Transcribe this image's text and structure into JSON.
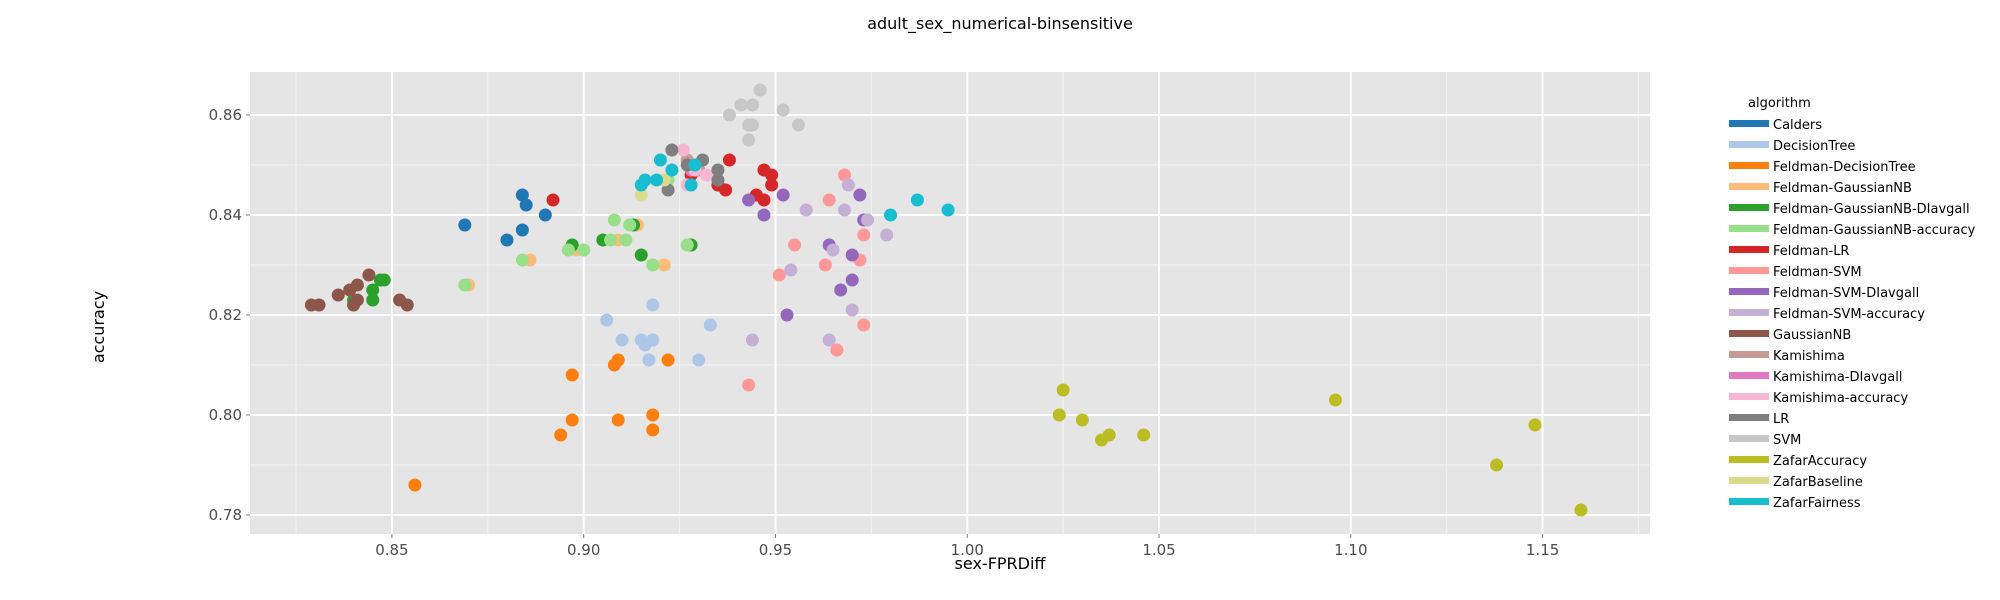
{
  "chart_data": {
    "type": "scatter",
    "title": "adult_sex_numerical-binsensitive",
    "xlabel": "sex-FPRDiff",
    "ylabel": "accuracy",
    "xlim": [
      0.813,
      1.178
    ],
    "ylim": [
      0.7762,
      0.8686
    ],
    "xticks": [
      0.85,
      0.9,
      0.95,
      1.0,
      1.05,
      1.1,
      1.15
    ],
    "xtick_labels": [
      "0.85",
      "0.90",
      "0.95",
      "1.00",
      "1.05",
      "1.10",
      "1.15"
    ],
    "yticks": [
      0.78,
      0.8,
      0.82,
      0.84,
      0.86
    ],
    "ytick_labels": [
      "0.78",
      "0.80",
      "0.82",
      "0.84",
      "0.86"
    ],
    "grid": true,
    "background": "#e5e5e5",
    "legend_title": "algorithm",
    "legend_position": "right",
    "series": [
      {
        "name": "Calders",
        "color": "#1f77b4",
        "points": [
          [
            0.869,
            0.838
          ],
          [
            0.88,
            0.835
          ],
          [
            0.884,
            0.844
          ],
          [
            0.885,
            0.842
          ],
          [
            0.884,
            0.837
          ],
          [
            0.89,
            0.84
          ]
        ]
      },
      {
        "name": "DecisionTree",
        "color": "#aec7e8",
        "points": [
          [
            0.906,
            0.819
          ],
          [
            0.91,
            0.815
          ],
          [
            0.915,
            0.815
          ],
          [
            0.916,
            0.814
          ],
          [
            0.918,
            0.815
          ],
          [
            0.917,
            0.811
          ],
          [
            0.918,
            0.822
          ],
          [
            0.93,
            0.811
          ],
          [
            0.933,
            0.818
          ]
        ]
      },
      {
        "name": "Feldman-DecisionTree",
        "color": "#ff7f0e",
        "points": [
          [
            0.856,
            0.786
          ],
          [
            0.894,
            0.796
          ],
          [
            0.897,
            0.799
          ],
          [
            0.897,
            0.808
          ],
          [
            0.908,
            0.81
          ],
          [
            0.909,
            0.811
          ],
          [
            0.909,
            0.799
          ],
          [
            0.918,
            0.8
          ],
          [
            0.918,
            0.797
          ],
          [
            0.922,
            0.811
          ]
        ]
      },
      {
        "name": "Feldman-GaussianNB",
        "color": "#ffbb78",
        "points": [
          [
            0.87,
            0.826
          ],
          [
            0.886,
            0.831
          ],
          [
            0.898,
            0.833
          ],
          [
            0.909,
            0.835
          ],
          [
            0.914,
            0.838
          ],
          [
            0.921,
            0.83
          ],
          [
            0.927,
            0.834
          ]
        ]
      },
      {
        "name": "Feldman-GaussianNB-DIavgall",
        "color": "#2ca02c",
        "points": [
          [
            0.84,
            0.823
          ],
          [
            0.845,
            0.823
          ],
          [
            0.845,
            0.825
          ],
          [
            0.847,
            0.827
          ],
          [
            0.848,
            0.827
          ],
          [
            0.897,
            0.834
          ],
          [
            0.905,
            0.835
          ],
          [
            0.913,
            0.838
          ],
          [
            0.915,
            0.832
          ],
          [
            0.928,
            0.834
          ]
        ]
      },
      {
        "name": "Feldman-GaussianNB-accuracy",
        "color": "#98df8a",
        "points": [
          [
            0.869,
            0.826
          ],
          [
            0.884,
            0.831
          ],
          [
            0.896,
            0.833
          ],
          [
            0.9,
            0.833
          ],
          [
            0.907,
            0.835
          ],
          [
            0.908,
            0.839
          ],
          [
            0.911,
            0.835
          ],
          [
            0.912,
            0.838
          ],
          [
            0.918,
            0.83
          ],
          [
            0.922,
            0.847
          ],
          [
            0.927,
            0.834
          ]
        ]
      },
      {
        "name": "Feldman-LR",
        "color": "#d62728",
        "points": [
          [
            0.892,
            0.843
          ],
          [
            0.928,
            0.848
          ],
          [
            0.935,
            0.846
          ],
          [
            0.937,
            0.845
          ],
          [
            0.938,
            0.851
          ],
          [
            0.945,
            0.844
          ],
          [
            0.947,
            0.849
          ],
          [
            0.947,
            0.843
          ],
          [
            0.949,
            0.848
          ],
          [
            0.949,
            0.846
          ]
        ]
      },
      {
        "name": "Feldman-SVM",
        "color": "#ff9896",
        "points": [
          [
            0.943,
            0.806
          ],
          [
            0.951,
            0.828
          ],
          [
            0.955,
            0.834
          ],
          [
            0.963,
            0.83
          ],
          [
            0.964,
            0.843
          ],
          [
            0.966,
            0.813
          ],
          [
            0.968,
            0.848
          ],
          [
            0.972,
            0.831
          ],
          [
            0.973,
            0.836
          ],
          [
            0.973,
            0.818
          ]
        ]
      },
      {
        "name": "Feldman-SVM-DIavgall",
        "color": "#9467bd",
        "points": [
          [
            0.943,
            0.843
          ],
          [
            0.947,
            0.84
          ],
          [
            0.952,
            0.844
          ],
          [
            0.953,
            0.82
          ],
          [
            0.964,
            0.834
          ],
          [
            0.967,
            0.825
          ],
          [
            0.97,
            0.827
          ],
          [
            0.97,
            0.832
          ],
          [
            0.972,
            0.844
          ],
          [
            0.973,
            0.839
          ]
        ]
      },
      {
        "name": "Feldman-SVM-accuracy",
        "color": "#c5b0d5",
        "points": [
          [
            0.944,
            0.815
          ],
          [
            0.954,
            0.829
          ],
          [
            0.958,
            0.841
          ],
          [
            0.964,
            0.815
          ],
          [
            0.965,
            0.833
          ],
          [
            0.968,
            0.841
          ],
          [
            0.969,
            0.846
          ],
          [
            0.97,
            0.821
          ],
          [
            0.974,
            0.839
          ],
          [
            0.979,
            0.836
          ]
        ]
      },
      {
        "name": "GaussianNB",
        "color": "#8c564b",
        "points": [
          [
            0.829,
            0.822
          ],
          [
            0.831,
            0.822
          ],
          [
            0.836,
            0.824
          ],
          [
            0.839,
            0.825
          ],
          [
            0.841,
            0.826
          ],
          [
            0.84,
            0.822
          ],
          [
            0.841,
            0.823
          ],
          [
            0.844,
            0.828
          ],
          [
            0.852,
            0.823
          ],
          [
            0.854,
            0.822
          ]
        ]
      },
      {
        "name": "Kamishima",
        "color": "#c49c94",
        "points": [
          [
            0.927,
            0.851
          ],
          [
            0.93,
            0.849
          ]
        ]
      },
      {
        "name": "Kamishima-DIavgall",
        "color": "#e377c2",
        "points": [
          [
            0.928,
            0.849
          ]
        ]
      },
      {
        "name": "Kamishima-accuracy",
        "color": "#f7b6d2",
        "points": [
          [
            0.926,
            0.853
          ],
          [
            0.927,
            0.846
          ],
          [
            0.929,
            0.849
          ],
          [
            0.932,
            0.848
          ]
        ]
      },
      {
        "name": "LR",
        "color": "#7f7f7f",
        "points": [
          [
            0.922,
            0.845
          ],
          [
            0.923,
            0.853
          ],
          [
            0.927,
            0.85
          ],
          [
            0.931,
            0.851
          ],
          [
            0.935,
            0.847
          ],
          [
            0.935,
            0.849
          ]
        ]
      },
      {
        "name": "SVM",
        "color": "#c7c7c7",
        "points": [
          [
            0.938,
            0.86
          ],
          [
            0.941,
            0.862
          ],
          [
            0.943,
            0.858
          ],
          [
            0.943,
            0.855
          ],
          [
            0.944,
            0.862
          ],
          [
            0.944,
            0.858
          ],
          [
            0.946,
            0.865
          ],
          [
            0.952,
            0.861
          ],
          [
            0.956,
            0.858
          ]
        ]
      },
      {
        "name": "ZafarAccuracy",
        "color": "#bcbd22",
        "points": [
          [
            1.024,
            0.8
          ],
          [
            1.025,
            0.805
          ],
          [
            1.03,
            0.799
          ],
          [
            1.035,
            0.795
          ],
          [
            1.037,
            0.796
          ],
          [
            1.046,
            0.796
          ],
          [
            1.096,
            0.803
          ],
          [
            1.138,
            0.79
          ],
          [
            1.148,
            0.798
          ],
          [
            1.16,
            0.781
          ]
        ]
      },
      {
        "name": "ZafarBaseline",
        "color": "#dbdb8d",
        "points": [
          [
            0.915,
            0.844
          ],
          [
            0.921,
            0.847
          ]
        ]
      },
      {
        "name": "ZafarFairness",
        "color": "#17becf",
        "points": [
          [
            0.915,
            0.846
          ],
          [
            0.916,
            0.847
          ],
          [
            0.919,
            0.847
          ],
          [
            0.92,
            0.851
          ],
          [
            0.923,
            0.849
          ],
          [
            0.928,
            0.846
          ],
          [
            0.929,
            0.85
          ],
          [
            0.987,
            0.843
          ],
          [
            0.98,
            0.84
          ],
          [
            0.995,
            0.841
          ]
        ]
      }
    ]
  }
}
